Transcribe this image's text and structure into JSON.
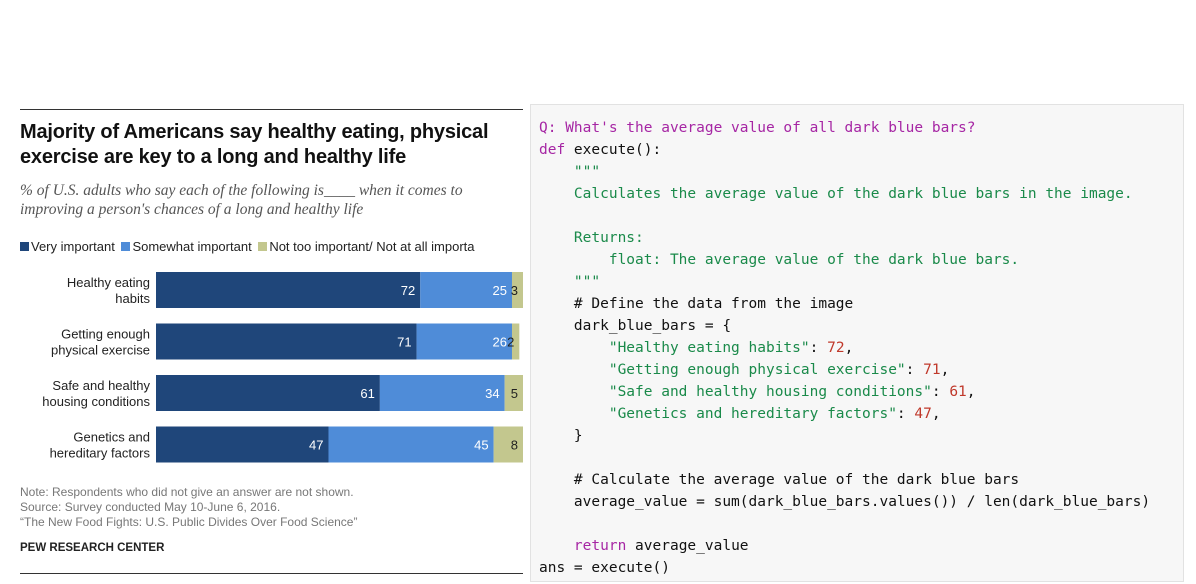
{
  "chart_data": {
    "type": "bar",
    "orientation": "horizontal",
    "stacked": true,
    "title": "Majority of Americans say healthy eating, physical exercise are key to a long and healthy life",
    "subtitle": "% of U.S. adults who say each of the following is____ when it comes to improving a person's chances of a long and healthy life",
    "categories": [
      [
        "Healthy eating",
        "habits"
      ],
      [
        "Getting enough",
        "physical exercise"
      ],
      [
        "Safe and healthy",
        "housing conditions"
      ],
      [
        "Genetics and",
        "hereditary factors"
      ]
    ],
    "series": [
      {
        "name": "Very important",
        "color": "#1f467a",
        "values": [
          72,
          71,
          61,
          47
        ]
      },
      {
        "name": "Somewhat important",
        "color": "#4f8cd8",
        "values": [
          25,
          26,
          34,
          45
        ]
      },
      {
        "name": "Not too important/ Not at all importa",
        "color": "#c3c78e",
        "values": [
          3,
          2,
          5,
          8
        ]
      }
    ],
    "legend_position": "top",
    "grid": false
  },
  "notes": [
    "Note: Respondents who did not give an answer are not shown.",
    "Source: Survey conducted May 10-June 6, 2016.",
    "“The New Food Fights: U.S. Public Divides Over Food Science”"
  ],
  "org": "PEW RESEARCH CENTER",
  "code": {
    "question": "Q: What's the average value of all dark blue bars?",
    "def_kw": "def",
    "def_sig": " execute():",
    "docstring_open": "    \"\"\"",
    "doc_line1": "    Calculates the average value of the dark blue bars in the image.",
    "doc_returns": "    Returns:",
    "doc_returns_desc": "        float: The average value of the dark blue bars.",
    "docstring_close": "    \"\"\"",
    "comment1": "    # Define the data from the image",
    "dict_open": "    dark_blue_bars = {",
    "entries": [
      {
        "key": "        \"Healthy eating habits\"",
        "value": "72",
        "sep": ","
      },
      {
        "key": "        \"Getting enough physical exercise\"",
        "value": "71",
        "sep": ","
      },
      {
        "key": "        \"Safe and healthy housing conditions\"",
        "value": "61",
        "sep": ","
      },
      {
        "key": "        \"Genetics and hereditary factors\"",
        "value": "47",
        "sep": ","
      }
    ],
    "dict_close": "    }",
    "comment2": "    # Calculate the average value of the dark blue bars",
    "avg_line": "    average_value = sum(dark_blue_bars.values()) / len(dark_blue_bars)",
    "return_kw": "    return",
    "return_val": " average_value",
    "ans_line": "ans = execute()"
  }
}
